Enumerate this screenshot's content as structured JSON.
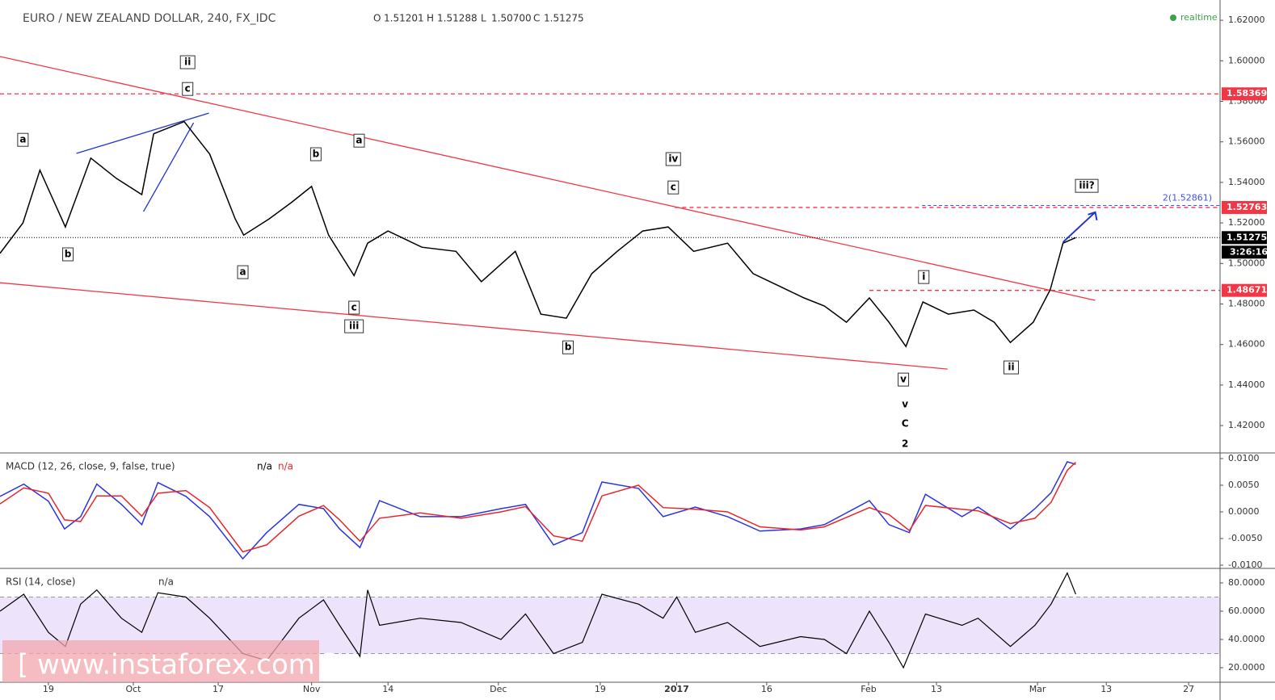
{
  "chart_data": [
    {
      "type": "line",
      "title": "EURO / NEW ZEALAND DOLLAR, 240, FX_IDC",
      "ohlc": [
        {
          "label": "O",
          "value": "1.51201"
        },
        {
          "label": "H",
          "value": "1.51288"
        },
        {
          "label": "L",
          "value": "1.50700"
        },
        {
          "label": "C",
          "value": "1.51275"
        }
      ],
      "status": "realtime",
      "color": "#000000",
      "xlim": [
        -5.7,
        138
      ],
      "ylim": [
        1.4069,
        1.63
      ],
      "xticks": [
        {
          "value": 0,
          "label": "19"
        },
        {
          "value": 10,
          "label": "Oct"
        },
        {
          "value": 20,
          "label": "17"
        },
        {
          "value": 31,
          "label": "Nov"
        },
        {
          "value": 40,
          "label": "14"
        },
        {
          "value": 53,
          "label": "Dec"
        },
        {
          "value": 65,
          "label": "19"
        },
        {
          "value": 74,
          "label": "2017"
        },
        {
          "value": 84.6,
          "label": "16"
        },
        {
          "value": 96.6,
          "label": "Feb"
        },
        {
          "value": 104.6,
          "label": "13"
        },
        {
          "value": 116.5,
          "label": "Mar"
        },
        {
          "value": 124.6,
          "label": "13"
        },
        {
          "value": 134.3,
          "label": "27"
        }
      ],
      "yticks": [
        {
          "value": 1.62,
          "label": "1.62000"
        },
        {
          "value": 1.6,
          "label": "1.60000"
        },
        {
          "value": 1.58,
          "label": "1.58000"
        },
        {
          "value": 1.56,
          "label": "1.56000"
        },
        {
          "value": 1.54,
          "label": "1.54000"
        },
        {
          "value": 1.52,
          "label": "1.52000"
        },
        {
          "value": 1.5,
          "label": "1.50000"
        },
        {
          "value": 1.48,
          "label": "1.48000"
        },
        {
          "value": 1.46,
          "label": "1.46000"
        },
        {
          "value": 1.44,
          "label": "1.44000"
        },
        {
          "value": 1.42,
          "label": "1.42000"
        }
      ],
      "x": [
        -5.7,
        -3,
        -1,
        2,
        5,
        8,
        11,
        12.4,
        16,
        19,
        22,
        23,
        26,
        28.6,
        31,
        33,
        36,
        37.6,
        40,
        44,
        48,
        51,
        55,
        58,
        61,
        64,
        67,
        70,
        73,
        76,
        80,
        83,
        86,
        89,
        91.4,
        94,
        96.7,
        99,
        101,
        103,
        106,
        109,
        111.4,
        113.3,
        116,
        118,
        119.5,
        121
      ],
      "values": [
        1.505,
        1.52,
        1.546,
        1.518,
        1.552,
        1.542,
        1.534,
        1.564,
        1.57,
        1.554,
        1.522,
        1.514,
        1.522,
        1.53,
        1.538,
        1.514,
        1.494,
        1.51,
        1.516,
        1.508,
        1.506,
        1.491,
        1.506,
        1.475,
        1.473,
        1.495,
        1.506,
        1.516,
        1.518,
        1.506,
        1.51,
        1.495,
        1.489,
        1.483,
        1.479,
        1.471,
        1.483,
        1.471,
        1.459,
        1.481,
        1.475,
        1.477,
        1.471,
        1.461,
        1.471,
        1.487,
        1.51,
        1.51275
      ],
      "levels": [
        {
          "value": 1.58369,
          "label": "1.58369",
          "x_start": -5.7,
          "color": "#f23645"
        },
        {
          "value": 1.52763,
          "label": "1.52763",
          "x_start": 73.8,
          "color": "#f23645"
        },
        {
          "value": 1.48671,
          "label": "1.48671",
          "x_start": 96.7,
          "color": "#f23645"
        }
      ],
      "last_price": {
        "value": 1.51275,
        "label": "1.51275"
      },
      "countdown": "3:26:16",
      "target": {
        "value": 1.52861,
        "label": "2(1.52861)",
        "x_start": 102.9,
        "color": "#3f51f5"
      },
      "trendlines": [
        {
          "color": "#f23645",
          "x": [
            -5.7,
            123.3
          ],
          "y": [
            1.6021,
            1.4818
          ]
        },
        {
          "color": "#f23645",
          "x": [
            -5.7,
            105.9
          ],
          "y": [
            1.4905,
            1.4479
          ]
        },
        {
          "color": "#2233cc",
          "x": [
            3.3,
            18.9
          ],
          "y": [
            1.5543,
            1.5742
          ]
        },
        {
          "color": "#2233cc",
          "x": [
            11.2,
            17.1
          ],
          "y": [
            1.5256,
            1.5694
          ]
        }
      ],
      "arrow": {
        "color": "#2233cc",
        "x": [
          119.5,
          123.3
        ],
        "y": [
          1.5105,
          1.5253
        ]
      },
      "annotations": [
        {
          "text": "a",
          "x": -3,
          "y": 1.561,
          "boxed": true
        },
        {
          "text": "b",
          "x": 2.3,
          "y": 1.5045,
          "boxed": true
        },
        {
          "text": "ii",
          "x": 16.4,
          "y": 1.5993,
          "boxed": true
        },
        {
          "text": "c",
          "x": 16.4,
          "y": 1.5861,
          "boxed": true
        },
        {
          "text": "b",
          "x": 31.5,
          "y": 1.5539,
          "boxed": true
        },
        {
          "text": "a",
          "x": 36.6,
          "y": 1.5606,
          "boxed": true
        },
        {
          "text": "a",
          "x": 22.9,
          "y": 1.4957,
          "boxed": true
        },
        {
          "text": "c",
          "x": 36,
          "y": 1.4782,
          "boxed": true
        },
        {
          "text": "iii",
          "x": 36,
          "y": 1.469,
          "boxed": true
        },
        {
          "text": "b",
          "x": 61.2,
          "y": 1.4586,
          "boxed": true
        },
        {
          "text": "iv",
          "x": 73.6,
          "y": 1.5515,
          "boxed": true
        },
        {
          "text": "c",
          "x": 73.6,
          "y": 1.5375,
          "boxed": true
        },
        {
          "text": "i",
          "x": 103.1,
          "y": 1.4933,
          "boxed": true
        },
        {
          "text": "v",
          "x": 100.7,
          "y": 1.4427,
          "boxed": true
        },
        {
          "text": "ii",
          "x": 113.4,
          "y": 1.4487,
          "boxed": true
        },
        {
          "text": "iii?",
          "x": 122.3,
          "y": 1.5383,
          "boxed": true
        },
        {
          "text": "v",
          "x": 100.9,
          "y": 1.4304,
          "boxed": false
        },
        {
          "text": "C",
          "x": 100.9,
          "y": 1.4208,
          "boxed": false
        },
        {
          "text": "2",
          "x": 100.9,
          "y": 1.4108,
          "boxed": false
        }
      ]
    },
    {
      "type": "line",
      "title": "MACD (12, 26, close, 9, false, true)",
      "xlim": [
        -5.7,
        138
      ],
      "ylim": [
        -0.01045,
        0.0109
      ],
      "yticks": [
        {
          "value": 0.01,
          "label": "0.0100"
        },
        {
          "value": 0.005,
          "label": "0.0050"
        },
        {
          "value": 0,
          "label": "0.0000"
        },
        {
          "value": -0.005,
          "label": "-0.0050"
        },
        {
          "value": -0.01,
          "label": "-0.0100"
        }
      ],
      "x": [
        -5.7,
        -2.9,
        0,
        1.9,
        3.8,
        5.7,
        8.6,
        11,
        12.9,
        16.2,
        19,
        22.9,
        25.7,
        29.5,
        32.4,
        34.3,
        36.7,
        39,
        43.8,
        48.6,
        53.3,
        56.2,
        59.5,
        62.9,
        65.2,
        69.5,
        72.4,
        76.2,
        80,
        83.8,
        88.6,
        91.4,
        96.7,
        99,
        101.4,
        103.3,
        107.6,
        109.5,
        113.3,
        116.2,
        118.1,
        120,
        121
      ],
      "series": [
        {
          "name": "n/a",
          "color": "#2a35e0",
          "values": [
            0.0029,
            0.0052,
            0.002,
            -0.0032,
            -0.0009,
            0.0052,
            0.0014,
            -0.0024,
            0.0055,
            0.0029,
            -0.0009,
            -0.0088,
            -0.0039,
            0.0014,
            0.0006,
            -0.0032,
            -0.0067,
            0.0021,
            -0.0009,
            -0.0009,
            0.0006,
            0.0014,
            -0.0062,
            -0.0039,
            0.0056,
            0.0044,
            -0.0009,
            0.0009,
            -0.0009,
            -0.0036,
            -0.0032,
            -0.0024,
            0.0021,
            -0.0024,
            -0.0039,
            0.0033,
            -0.0009,
            0.0009,
            -0.0032,
            0.0006,
            0.0036,
            0.0094,
            0.0089
          ]
        },
        {
          "name": "n/a",
          "color": "#e8262b",
          "values": [
            0.0015,
            0.0045,
            0.0035,
            -0.0015,
            -0.0018,
            0.003,
            0.003,
            -0.0008,
            0.0035,
            0.004,
            0.0008,
            -0.0075,
            -0.0062,
            -0.0008,
            0.0012,
            -0.0015,
            -0.0055,
            -0.0012,
            -0.0002,
            -0.0012,
            0.0,
            0.001,
            -0.0045,
            -0.0055,
            0.003,
            0.005,
            0.0008,
            0.0005,
            0.0,
            -0.0028,
            -0.0034,
            -0.0028,
            0.0008,
            -0.0005,
            -0.0035,
            0.0012,
            0.0005,
            0.0002,
            -0.0022,
            -0.0012,
            0.0018,
            0.0078,
            0.0093
          ]
        }
      ]
    },
    {
      "type": "line",
      "title": "RSI (14, close)",
      "status": "n/a",
      "color": "#000000",
      "band": [
        30,
        70
      ],
      "band_color": "#ede3fa",
      "xlim": [
        -5.7,
        138
      ],
      "ylim": [
        9.7,
        89.7
      ],
      "yticks": [
        {
          "value": 80,
          "label": "80.0000"
        },
        {
          "value": 60,
          "label": "60.0000"
        },
        {
          "value": 40,
          "label": "40.0000"
        },
        {
          "value": 20,
          "label": "20.0000"
        }
      ],
      "x": [
        -5.7,
        -2.9,
        0,
        2,
        3.8,
        5.7,
        8.6,
        11,
        12.9,
        16.2,
        19,
        22.9,
        25.7,
        29.5,
        32.4,
        34.3,
        36.7,
        37.6,
        39,
        43.8,
        48.6,
        53.3,
        56.2,
        59.5,
        62.9,
        65.2,
        69.5,
        72.4,
        74,
        76.2,
        80,
        83.8,
        88.6,
        91.4,
        94,
        96.7,
        99,
        100.7,
        103.3,
        107.6,
        109.5,
        113.3,
        116.2,
        118.1,
        120,
        121
      ],
      "values": [
        60,
        72,
        45,
        35,
        65,
        75,
        55,
        45,
        73,
        70,
        55,
        30,
        25,
        55,
        68,
        50,
        28,
        75,
        50,
        55,
        52,
        40,
        58,
        30,
        38,
        72,
        65,
        55,
        70,
        45,
        52,
        35,
        42,
        40,
        30,
        60,
        38,
        20,
        58,
        50,
        55,
        35,
        50,
        65,
        87,
        72
      ]
    }
  ],
  "watermark": "[ www.instaforex.com ]"
}
